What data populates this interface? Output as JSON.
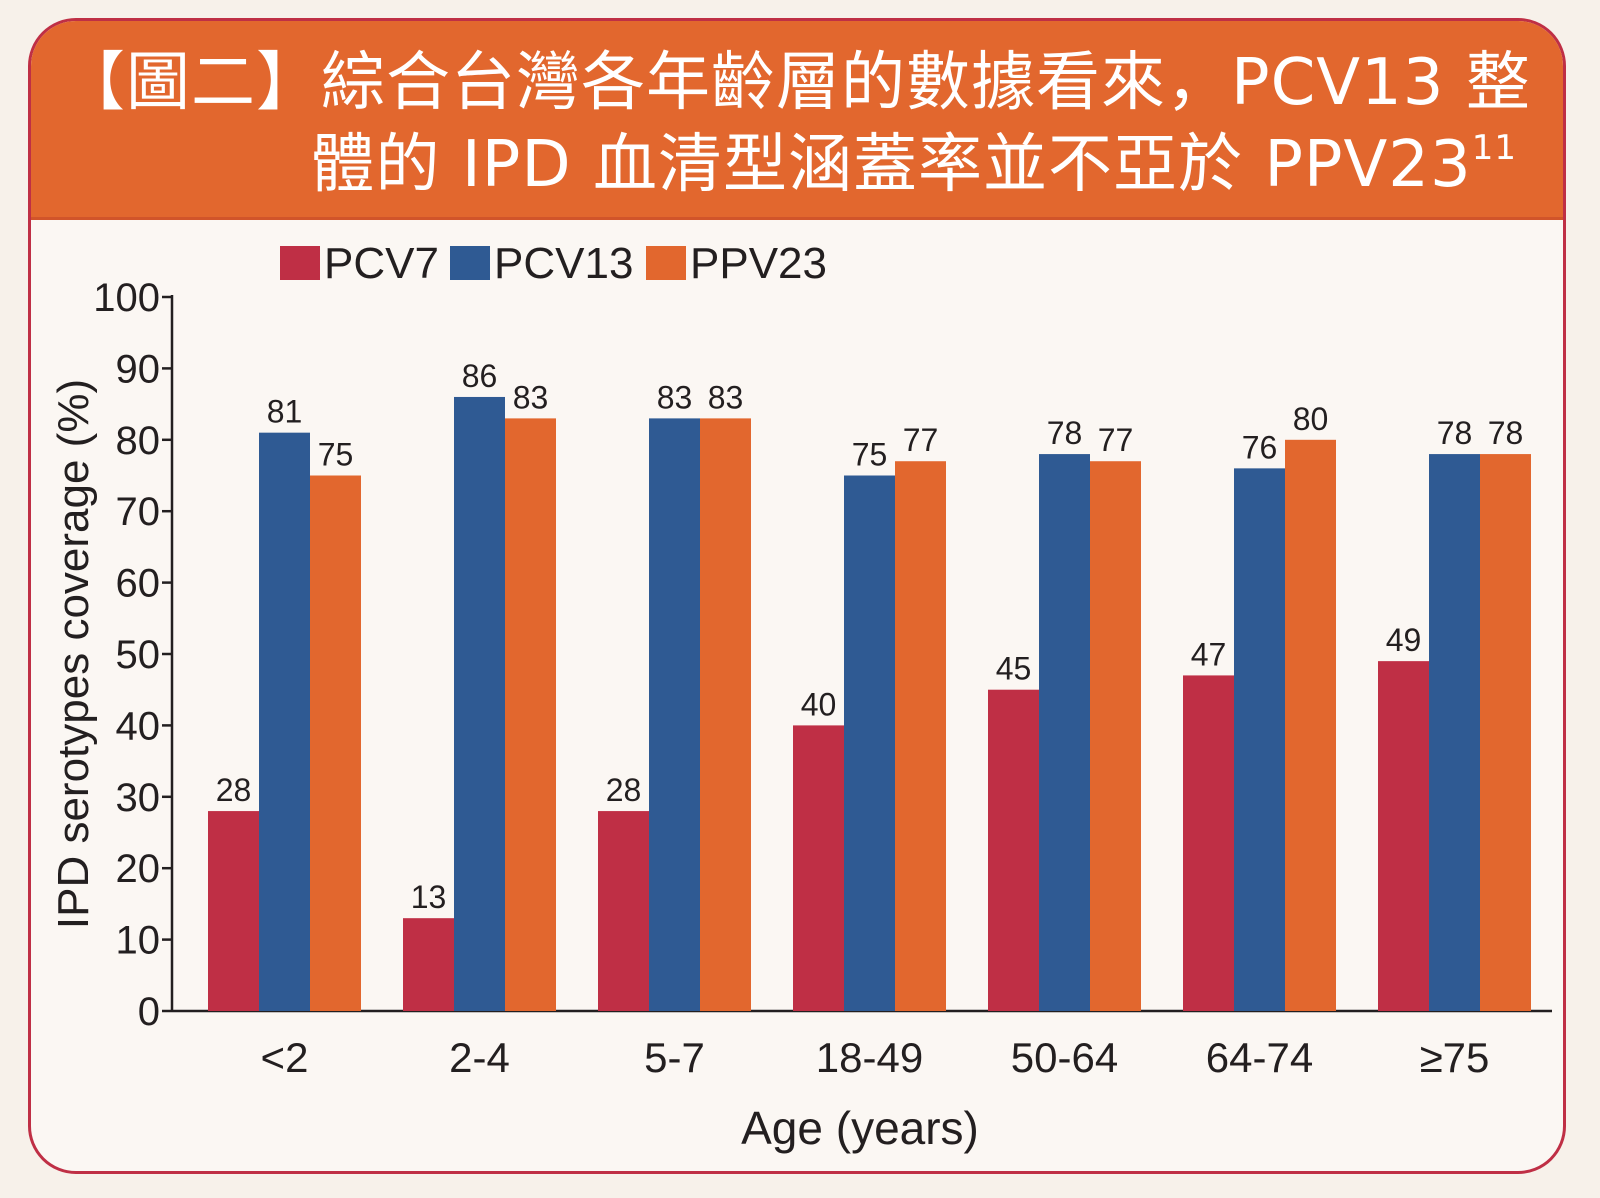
{
  "header": {
    "title_line1": "【圖二】綜合台灣各年齡層的數據看來，PCV13 整",
    "title_line2": "體的 IPD 血清型涵蓋率並不亞於 PPV23",
    "title_superscript": "11"
  },
  "colors": {
    "header_bg": "#e2672e",
    "frame_border": "#bf2f45",
    "PCV7": "#bf2f45",
    "PCV13": "#2f5a93",
    "PPV23": "#e2672e"
  },
  "chart_data": {
    "type": "bar",
    "categories": [
      "<2",
      "2-4",
      "5-7",
      "18-49",
      "50-64",
      "64-74",
      "≥75"
    ],
    "series": [
      {
        "name": "PCV7",
        "values": [
          28,
          13,
          28,
          40,
          45,
          47,
          49
        ],
        "labels": [
          "28",
          "13",
          "28",
          "40",
          "45",
          "47",
          "49"
        ]
      },
      {
        "name": "PCV13",
        "values": [
          81,
          86,
          83,
          75,
          78,
          76,
          78
        ],
        "labels": [
          "81",
          "86",
          "83",
          "75",
          "78",
          "76",
          "78"
        ]
      },
      {
        "name": "PPV23",
        "values": [
          75,
          83,
          83,
          77,
          77,
          80,
          78
        ],
        "labels": [
          "75",
          "83",
          "83",
          "77",
          "77",
          "80",
          "78"
        ]
      }
    ],
    "xlabel": "Age (years)",
    "ylabel": "IPD serotypes coverage (%)",
    "ylim": [
      0,
      100
    ],
    "yticks": [
      "0",
      "10",
      "20",
      "30",
      "40",
      "50",
      "60",
      "70",
      "80",
      "90",
      "100"
    ],
    "legend_position": "top-left",
    "grid": false
  }
}
